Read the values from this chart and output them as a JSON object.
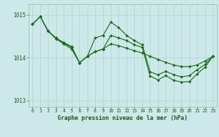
{
  "background_color": "#cce8e8",
  "grid_color": "#aad4cc",
  "line_color": "#1a6b1a",
  "xlabel": "Graphe pression niveau de la mer (hPa)",
  "ylim": [
    1012.85,
    1015.25
  ],
  "yticks": [
    1013,
    1014,
    1015
  ],
  "xlim": [
    -0.5,
    23.5
  ],
  "xticks": [
    0,
    1,
    2,
    3,
    4,
    5,
    6,
    7,
    8,
    9,
    10,
    11,
    12,
    13,
    14,
    15,
    16,
    17,
    18,
    19,
    20,
    21,
    22,
    23
  ],
  "line1_x": [
    0,
    1,
    2,
    3,
    4,
    5,
    6,
    7,
    8,
    9,
    10,
    11,
    12,
    13,
    14,
    15,
    16,
    17,
    18,
    19,
    20,
    21,
    22,
    23
  ],
  "line1_y": [
    1014.78,
    1014.96,
    1014.62,
    1014.46,
    1014.35,
    1014.26,
    1013.88,
    1014.03,
    1014.14,
    1014.2,
    1014.32,
    1014.28,
    1014.22,
    1014.16,
    1014.11,
    1014.03,
    1013.96,
    1013.89,
    1013.83,
    1013.79,
    1013.79,
    1013.83,
    1013.92,
    1014.03
  ],
  "line2_x": [
    0,
    1,
    2,
    3,
    4,
    5,
    6,
    7,
    8,
    9,
    10,
    11,
    12,
    13,
    14,
    15,
    16,
    17,
    18,
    19,
    20,
    21,
    22,
    23
  ],
  "line2_y": [
    1014.78,
    1014.96,
    1014.62,
    1014.46,
    1014.34,
    1014.24,
    1013.88,
    1014.03,
    1014.46,
    1014.52,
    1014.83,
    1014.7,
    1014.52,
    1014.4,
    1014.3,
    1013.67,
    1013.6,
    1013.68,
    1013.6,
    1013.55,
    1013.58,
    1013.72,
    1013.84,
    1014.03
  ],
  "line3_x": [
    0,
    1,
    2,
    3,
    4,
    5,
    6,
    7,
    8,
    9,
    10,
    11,
    12,
    13,
    14,
    15,
    16,
    17,
    18,
    19,
    20,
    21,
    22,
    23
  ],
  "line3_y": [
    1014.78,
    1014.96,
    1014.62,
    1014.44,
    1014.32,
    1014.2,
    1013.88,
    1014.03,
    1014.14,
    1014.2,
    1014.52,
    1014.46,
    1014.4,
    1014.3,
    1014.24,
    1013.57,
    1013.48,
    1013.58,
    1013.47,
    1013.43,
    1013.44,
    1013.62,
    1013.78,
    1014.03
  ]
}
